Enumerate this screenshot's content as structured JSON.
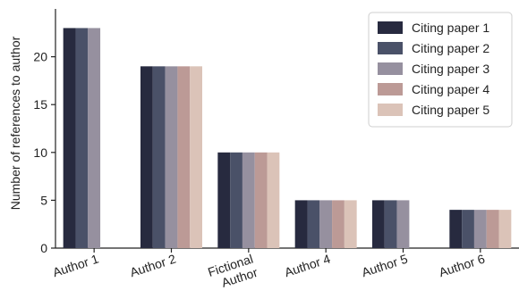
{
  "chart_data": {
    "type": "bar",
    "title": "",
    "xlabel": "",
    "ylabel": "Number of references to author",
    "ylim": [
      0,
      25
    ],
    "yticks": [
      0,
      5,
      10,
      15,
      20
    ],
    "grid": false,
    "legend_position": "top-right",
    "categories": [
      "Author 1",
      "Author 2",
      "Fictional\nAuthor",
      "Author 4",
      "Author 5",
      "Author 6"
    ],
    "series": [
      {
        "name": "Citing paper 1",
        "color": "#272a3f",
        "values": [
          23,
          19,
          10,
          5,
          5,
          4
        ]
      },
      {
        "name": "Citing paper 2",
        "color": "#4a5168",
        "values": [
          23,
          19,
          10,
          5,
          5,
          4
        ]
      },
      {
        "name": "Citing paper 3",
        "color": "#96909f",
        "values": [
          23,
          19,
          10,
          5,
          5,
          4
        ]
      },
      {
        "name": "Citing paper 4",
        "color": "#bc9a96",
        "values": [
          0,
          19,
          10,
          5,
          0,
          4
        ]
      },
      {
        "name": "Citing paper 5",
        "color": "#dbc3b8",
        "values": [
          0,
          19,
          10,
          5,
          0,
          4
        ]
      }
    ]
  }
}
